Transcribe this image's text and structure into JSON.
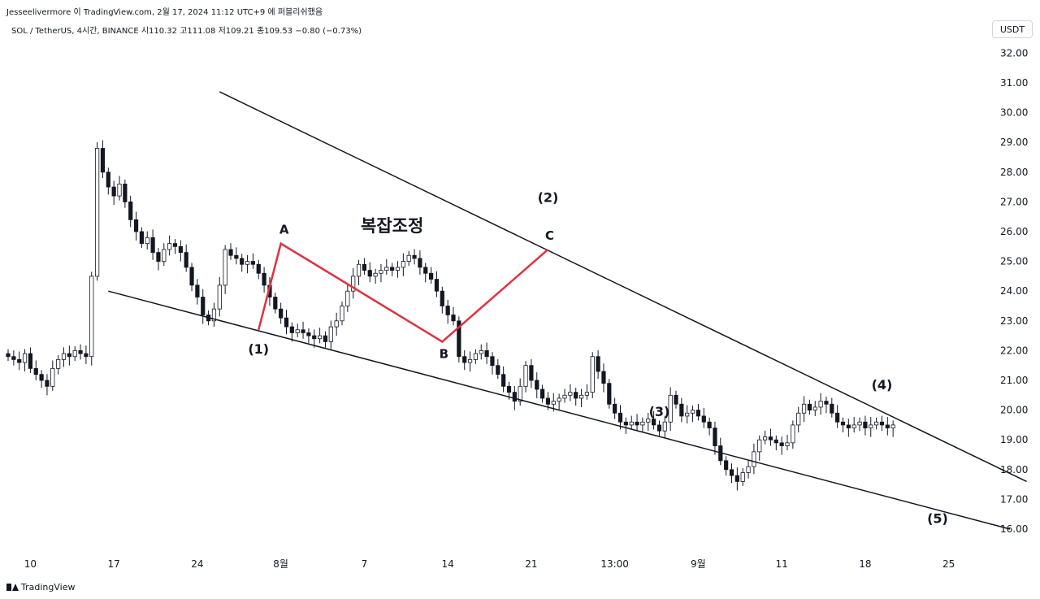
{
  "header": {
    "publish_line": "Jesseelivermore 이 TradingView.com, 2월 17, 2024 11:12 UTC+9 에 퍼블리쉬했음",
    "symbol_line": "SOL / TetherUS, 4시간, BINANCE  시110.32  고111.08  저109.21  종109.53  −0.80 (−0.73%)",
    "currency_button": "USDT"
  },
  "footer": {
    "brand": "TradingView"
  },
  "colors": {
    "up": "#ffffff",
    "down": "#131722",
    "pattern": "#e0313f",
    "trendline": "#131722"
  },
  "chart_data": {
    "type": "candlestick",
    "y_axis": {
      "range": [
        15.5,
        32.5
      ],
      "ticks": [
        "16.00",
        "17.00",
        "18.00",
        "19.00",
        "20.00",
        "21.00",
        "22.00",
        "23.00",
        "24.00",
        "25.00",
        "26.00",
        "27.00",
        "28.00",
        "29.00",
        "30.00",
        "31.00",
        "32.00"
      ]
    },
    "x_axis": {
      "ticks": [
        {
          "label": "10",
          "i": 4
        },
        {
          "label": "17",
          "i": 19
        },
        {
          "label": "24",
          "i": 34
        },
        {
          "label": "8월",
          "i": 49
        },
        {
          "label": "7",
          "i": 64
        },
        {
          "label": "14",
          "i": 79
        },
        {
          "label": "21",
          "i": 94
        },
        {
          "label": "13:00",
          "i": 109
        },
        {
          "label": "9월",
          "i": 124
        },
        {
          "label": "11",
          "i": 139
        },
        {
          "label": "18",
          "i": 154
        },
        {
          "label": "25",
          "i": 169
        }
      ]
    },
    "candles_close": [
      21.8,
      21.7,
      21.6,
      21.9,
      21.4,
      21.2,
      21.0,
      20.8,
      21.4,
      21.7,
      21.9,
      21.8,
      22.0,
      21.9,
      21.8,
      24.5,
      28.8,
      28.0,
      27.5,
      27.2,
      27.6,
      27.0,
      26.4,
      26.0,
      25.6,
      25.8,
      25.3,
      25.0,
      25.4,
      25.6,
      25.5,
      25.3,
      24.8,
      24.2,
      23.8,
      23.2,
      23.0,
      23.4,
      24.2,
      25.4,
      25.2,
      25.1,
      24.9,
      25.0,
      24.9,
      24.6,
      24.2,
      23.8,
      23.4,
      23.1,
      22.8,
      22.6,
      22.7,
      22.6,
      22.5,
      22.4,
      22.5,
      22.3,
      22.8,
      23.0,
      23.5,
      24.0,
      24.5,
      24.9,
      24.7,
      24.5,
      24.6,
      24.7,
      24.8,
      24.7,
      24.8,
      25.0,
      25.2,
      25.1,
      24.8,
      24.6,
      24.4,
      24.0,
      23.5,
      23.2,
      23.0,
      21.8,
      21.6,
      21.7,
      21.9,
      22.0,
      21.8,
      21.5,
      21.2,
      20.8,
      20.6,
      20.3,
      20.8,
      21.5,
      21.0,
      20.7,
      20.4,
      20.2,
      20.3,
      20.4,
      20.5,
      20.6,
      20.4,
      20.5,
      20.6,
      21.8,
      21.3,
      20.9,
      20.2,
      19.9,
      19.6,
      19.5,
      19.6,
      19.5,
      19.6,
      19.7,
      19.5,
      19.3,
      19.6,
      20.5,
      20.2,
      19.8,
      19.9,
      20.0,
      19.8,
      19.6,
      19.4,
      18.8,
      18.3,
      18.0,
      17.8,
      17.6,
      17.9,
      18.1,
      18.6,
      19.0,
      19.1,
      19.0,
      18.9,
      18.8,
      18.9,
      19.5,
      19.9,
      20.2,
      20.0,
      20.1,
      20.3,
      20.2,
      19.9,
      19.6,
      19.5,
      19.4,
      19.5,
      19.6,
      19.4,
      19.5,
      19.6,
      19.5,
      19.4,
      19.5
    ],
    "trendlines": [
      {
        "from": {
          "i": 38,
          "y": 30.7
        },
        "to": {
          "i": 183,
          "y": 17.6
        }
      },
      {
        "from": {
          "i": 18,
          "y": 24.0
        },
        "to": {
          "i": 180,
          "y": 16.0
        }
      }
    ],
    "abc_pattern": [
      {
        "label": "A",
        "i": 49,
        "y": 25.6
      },
      {
        "label": "B",
        "i": 78,
        "y": 22.3
      },
      {
        "label": "C",
        "i": 97,
        "y": 25.4
      }
    ],
    "pattern_start": {
      "i": 45,
      "y": 22.7
    },
    "annotations": [
      {
        "label": "복잡조정",
        "i": 69,
        "y": 26.0
      },
      {
        "label": "(1)",
        "i": 45,
        "y": 21.9
      },
      {
        "label": "(2)",
        "i": 97,
        "y": 27.0
      },
      {
        "label": "(3)",
        "i": 117,
        "y": 19.8
      },
      {
        "label": "(4)",
        "i": 157,
        "y": 20.7
      },
      {
        "label": "(5)",
        "i": 167,
        "y": 16.2
      }
    ]
  }
}
